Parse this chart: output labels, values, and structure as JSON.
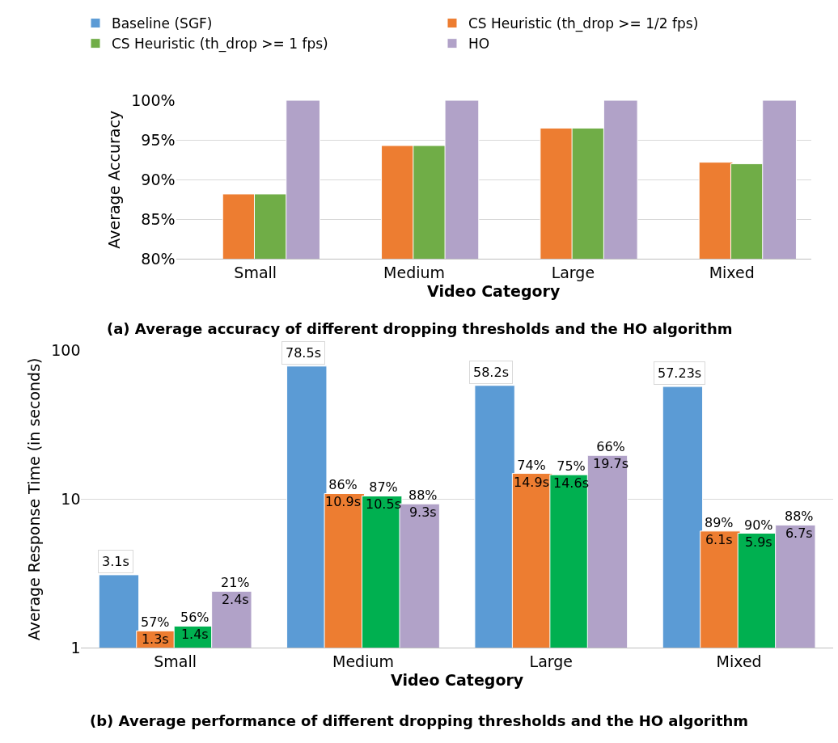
{
  "chart_data": [
    {
      "type": "bar",
      "title": "(a) Average accuracy of different dropping thresholds and the HO algorithm",
      "xlabel": "Video Category",
      "ylabel": "Average Accuracy",
      "categories": [
        "Small",
        "Medium",
        "Large",
        "Mixed"
      ],
      "series": [
        {
          "name": "Baseline (SGF)",
          "color": "#5b9bd5",
          "values": [
            null,
            null,
            null,
            null
          ]
        },
        {
          "name": "CS Heuristic (th_drop >= 1/2 fps)",
          "color": "#ed7d31",
          "values": [
            88.2,
            94.3,
            96.5,
            92.2
          ]
        },
        {
          "name": "CS Heuristic (th_drop >= 1 fps)",
          "color": "#70ad47",
          "values": [
            88.2,
            94.3,
            96.5,
            92.0
          ]
        },
        {
          "name": "HO",
          "color": "#b1a2c8",
          "values": [
            100,
            100,
            100,
            100
          ]
        }
      ],
      "ylim": [
        80,
        100
      ],
      "yticks": [
        {
          "value": 80,
          "label": "80%"
        },
        {
          "value": 85,
          "label": "85%"
        },
        {
          "value": 90,
          "label": "90%"
        },
        {
          "value": 95,
          "label": "95%"
        },
        {
          "value": 100,
          "label": "100%"
        }
      ],
      "grid": "y",
      "legend": "top"
    },
    {
      "type": "bar",
      "title": "(b) Average performance of different dropping thresholds and the HO algorithm",
      "xlabel": "Video Category",
      "ylabel": "Average Response Time (in seconds)",
      "categories": [
        "Small",
        "Medium",
        "Large",
        "Mixed"
      ],
      "series": [
        {
          "color": "#5b9bd5",
          "values": [
            3.1,
            78.5,
            58.2,
            57.23
          ],
          "value_labels": [
            "3.1s",
            "78.5s",
            "58.2s",
            "57.23s"
          ]
        },
        {
          "color": "#ed7d31",
          "values": [
            1.3,
            10.9,
            14.9,
            6.1
          ],
          "value_labels": [
            "57%\n1.3s",
            "86%\n10.9s",
            "74%\n14.9s",
            "89%\n6.1s"
          ]
        },
        {
          "color": "#00b050",
          "values": [
            1.4,
            10.5,
            14.6,
            5.9
          ],
          "value_labels": [
            "56%\n1.4s",
            "87%\n10.5s",
            "75%\n14.6s",
            "90%\n5.9s"
          ]
        },
        {
          "color": "#b1a2c8",
          "values": [
            2.4,
            9.3,
            19.7,
            6.7
          ],
          "value_labels": [
            "21%\n2.4s",
            "88%\n9.3s",
            "66%\n19.7s",
            "88%\n6.7s"
          ]
        }
      ],
      "log": "y",
      "ylim": [
        1,
        100
      ],
      "yticks": [
        1,
        10,
        100
      ],
      "grid": "y"
    }
  ]
}
